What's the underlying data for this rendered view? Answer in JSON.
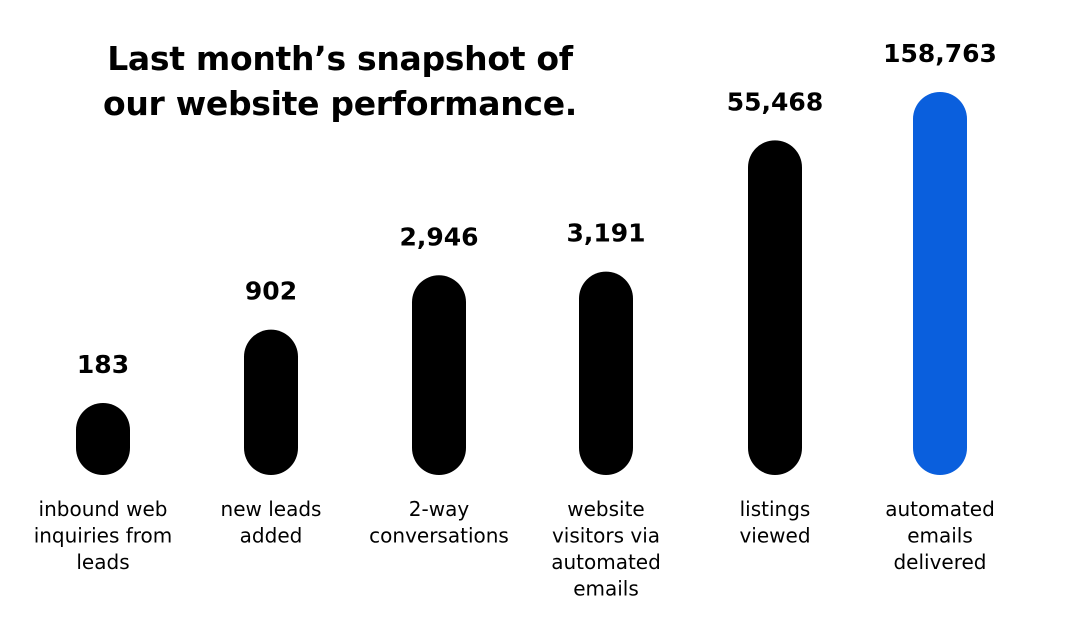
{
  "chart_data": {
    "type": "bar",
    "title": "Last month’s snapshot of our website performance.",
    "title_lines": [
      "Last month’s snapshot of",
      "our website performance."
    ],
    "categories": [
      "inbound web inquiries from leads",
      "new leads added",
      "2-way conversations",
      "website visitors via automated emails",
      "listings viewed",
      "automated emails delivered"
    ],
    "category_lines": [
      [
        "inbound web",
        "inquiries from",
        "leads"
      ],
      [
        "new leads",
        "added"
      ],
      [
        "2-way",
        "conversations"
      ],
      [
        "website",
        "visitors via",
        "automated",
        "emails"
      ],
      [
        "listings",
        "viewed"
      ],
      [
        "automated",
        "emails",
        "delivered"
      ]
    ],
    "values": [
      183,
      902,
      2946,
      3191,
      55468,
      158763
    ],
    "value_labels": [
      "183",
      "902",
      "2,946",
      "3,191",
      "55,468",
      "158,763"
    ],
    "bar_colors": [
      "#000000",
      "#000000",
      "#000000",
      "#000000",
      "#000000",
      "#0a5fdd"
    ],
    "highlight_color": "#0a5fdd",
    "bar_shape": "rounded-pill",
    "axes_visible": false,
    "grid": false,
    "legend": "none",
    "scale": "non-linear (illustrative heights)"
  }
}
